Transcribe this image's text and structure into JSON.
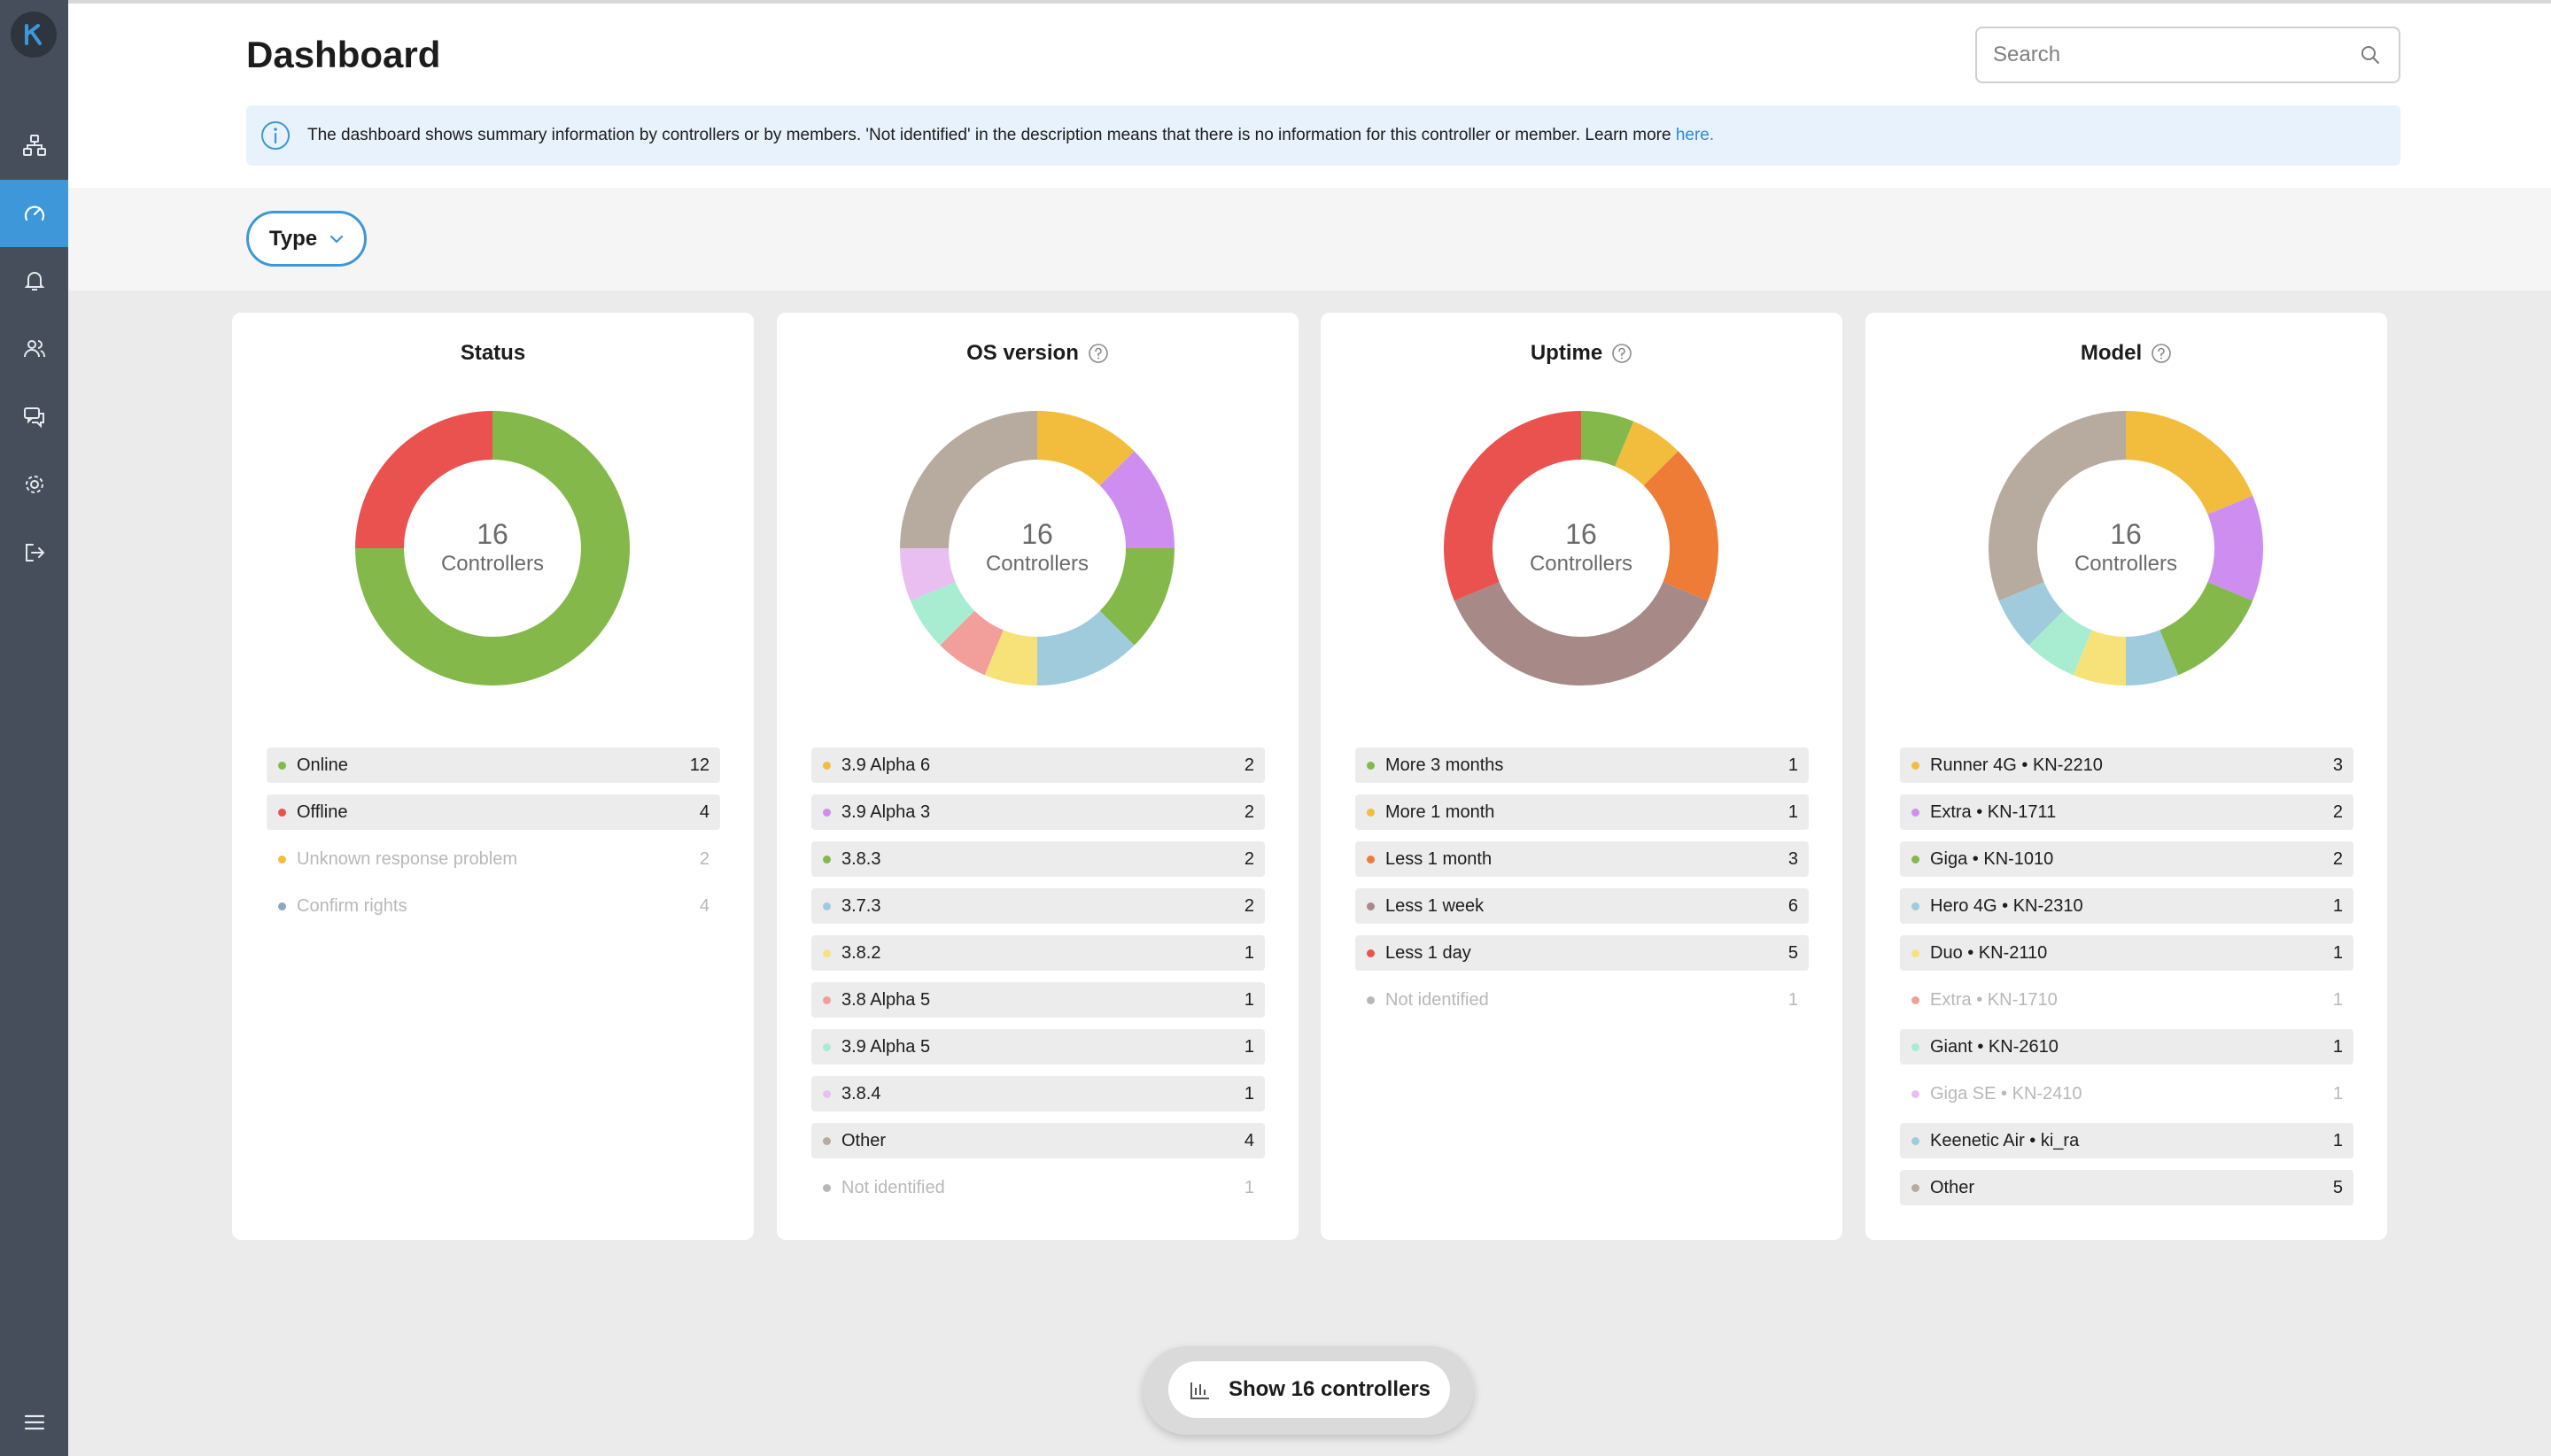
{
  "header": {
    "title": "Dashboard",
    "search_placeholder": "Search",
    "info_text": "The dashboard shows summary information by controllers or by members. 'Not identified' in the description means that there is no information for this controller or member. Learn more ",
    "info_link": "here."
  },
  "filter": {
    "type_label": "Type"
  },
  "sidebar": {
    "items": [
      {
        "name": "network-icon"
      },
      {
        "name": "dashboard-icon",
        "active": true
      },
      {
        "name": "bell-icon"
      },
      {
        "name": "users-icon"
      },
      {
        "name": "chat-icon"
      },
      {
        "name": "gear-icon"
      },
      {
        "name": "logout-icon"
      },
      {
        "name": "menu-icon"
      }
    ]
  },
  "cards": [
    {
      "title": "Status",
      "help": false,
      "count": "16",
      "unit": "Controllers",
      "items": [
        {
          "label": "Online",
          "count": "12",
          "value": 12,
          "color": "#84b84a",
          "muted": false
        },
        {
          "label": "Offline",
          "count": "4",
          "value": 4,
          "color": "#e9524f",
          "muted": false
        },
        {
          "label": "Unknown response problem",
          "count": "2",
          "value": 0,
          "color": "#f2bd3c",
          "muted": true
        },
        {
          "label": "Confirm rights",
          "count": "4",
          "value": 0,
          "color": "#8fa6bd",
          "muted": true
        }
      ]
    },
    {
      "title": "OS version",
      "help": true,
      "count": "16",
      "unit": "Controllers",
      "items": [
        {
          "label": "3.9 Alpha 6",
          "count": "2",
          "value": 2,
          "color": "#f2bd3c",
          "muted": false
        },
        {
          "label": "3.9 Alpha 3",
          "count": "2",
          "value": 2,
          "color": "#cd8ef0",
          "muted": false
        },
        {
          "label": "3.8.3",
          "count": "2",
          "value": 2,
          "color": "#84b84a",
          "muted": false
        },
        {
          "label": "3.7.3",
          "count": "2",
          "value": 2,
          "color": "#9fcbdc",
          "muted": false
        },
        {
          "label": "3.8.2",
          "count": "1",
          "value": 1,
          "color": "#f7e27a",
          "muted": false
        },
        {
          "label": "3.8 Alpha 5",
          "count": "1",
          "value": 1,
          "color": "#f29e9a",
          "muted": false
        },
        {
          "label": "3.9 Alpha 5",
          "count": "1",
          "value": 1,
          "color": "#a8ecd1",
          "muted": false
        },
        {
          "label": "3.8.4",
          "count": "1",
          "value": 1,
          "color": "#e9bff2",
          "muted": false
        },
        {
          "label": "Other",
          "count": "4",
          "value": 4,
          "color": "#b7aba0",
          "muted": false
        },
        {
          "label": "Not identified",
          "count": "1",
          "value": 0,
          "color": "#b8b8b8",
          "muted": true
        }
      ]
    },
    {
      "title": "Uptime",
      "help": true,
      "count": "16",
      "unit": "Controllers",
      "items": [
        {
          "label": "More 3 months",
          "count": "1",
          "value": 1,
          "color": "#84b84a",
          "muted": false
        },
        {
          "label": "More 1 month",
          "count": "1",
          "value": 1,
          "color": "#f2bd3c",
          "muted": false
        },
        {
          "label": "Less 1 month",
          "count": "3",
          "value": 3,
          "color": "#ee7b36",
          "muted": false
        },
        {
          "label": "Less 1 week",
          "count": "6",
          "value": 6,
          "color": "#a78a87",
          "muted": false
        },
        {
          "label": "Less 1 day",
          "count": "5",
          "value": 5,
          "color": "#e9524f",
          "muted": false
        },
        {
          "label": "Not identified",
          "count": "1",
          "value": 0,
          "color": "#b8b8b8",
          "muted": true
        }
      ]
    },
    {
      "title": "Model",
      "help": true,
      "count": "16",
      "unit": "Controllers",
      "items": [
        {
          "label": "Runner 4G • KN-2210",
          "count": "3",
          "value": 3,
          "color": "#f2bd3c",
          "muted": false
        },
        {
          "label": "Extra • KN-1711",
          "count": "2",
          "value": 2,
          "color": "#cd8ef0",
          "muted": false
        },
        {
          "label": "Giga • KN-1010",
          "count": "2",
          "value": 2,
          "color": "#84b84a",
          "muted": false
        },
        {
          "label": "Hero 4G • KN-2310",
          "count": "1",
          "value": 1,
          "color": "#9fcbdc",
          "muted": false
        },
        {
          "label": "Duo • KN-2110",
          "count": "1",
          "value": 1,
          "color": "#f7e27a",
          "muted": false
        },
        {
          "label": "Extra • KN-1710",
          "count": "1",
          "value": 0,
          "color": "#f29e9a",
          "muted": true
        },
        {
          "label": "Giant • KN-2610",
          "count": "1",
          "value": 1,
          "color": "#a8ecd1",
          "muted": false
        },
        {
          "label": "Giga SE • KN-2410",
          "count": "1",
          "value": 0,
          "color": "#e9bff2",
          "muted": true
        },
        {
          "label": "Keenetic Air • ki_ra",
          "count": "1",
          "value": 1,
          "color": "#9fcbdc",
          "muted": false
        },
        {
          "label": "Other",
          "count": "5",
          "value": 5,
          "color": "#b7aba0",
          "muted": false
        }
      ]
    }
  ],
  "footer": {
    "show_button": "Show 16 controllers"
  }
}
